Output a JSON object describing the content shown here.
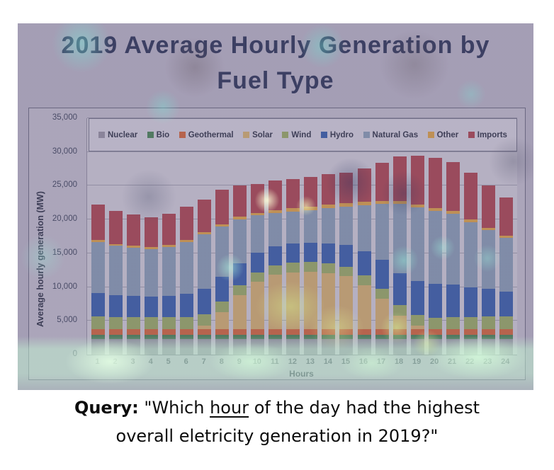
{
  "figure": {
    "title_line1": "2019 Average Hourly Generation by",
    "title_line2": "Fuel Type"
  },
  "query": {
    "label": "Query:",
    "before": " \"Which ",
    "underlined": "hour",
    "after": " of the day had the highest overall eletricity generation in 2019?\""
  },
  "chart_data": {
    "type": "bar",
    "stacked": true,
    "title": "2019 Average Hourly Generation by Fuel Type",
    "xlabel": "Hours",
    "ylabel": "Average hourly generation (MW)",
    "ylim": [
      0,
      35000
    ],
    "ytick_step": 5000,
    "ytick_labels": [
      "0",
      "5,000",
      "10,000",
      "15,000",
      "20,000",
      "25,000",
      "30,000",
      "35,000"
    ],
    "grid": true,
    "legend_position": "top",
    "categories": [
      "1",
      "2",
      "3",
      "4",
      "5",
      "6",
      "7",
      "8",
      "9",
      "10",
      "11",
      "12",
      "13",
      "14",
      "15",
      "16",
      "17",
      "18",
      "19",
      "20",
      "21",
      "22",
      "23",
      "24"
    ],
    "series": [
      {
        "name": "Nuclear",
        "color": "#8f8c9b",
        "values": [
          2300,
          2300,
          2300,
          2300,
          2300,
          2300,
          2300,
          2300,
          2300,
          2300,
          2300,
          2300,
          2300,
          2300,
          2300,
          2300,
          2300,
          2300,
          2300,
          2300,
          2300,
          2300,
          2300,
          2300
        ]
      },
      {
        "name": "Bio",
        "color": "#3f7d4b",
        "values": [
          600,
          600,
          600,
          600,
          600,
          600,
          600,
          600,
          600,
          600,
          600,
          600,
          600,
          600,
          600,
          600,
          600,
          600,
          600,
          600,
          600,
          600,
          600,
          600
        ]
      },
      {
        "name": "Geothermal",
        "color": "#cf5d2e",
        "values": [
          900,
          900,
          900,
          900,
          900,
          900,
          900,
          900,
          900,
          900,
          900,
          900,
          900,
          900,
          900,
          900,
          900,
          900,
          900,
          900,
          900,
          900,
          900,
          900
        ]
      },
      {
        "name": "Solar",
        "color": "#d2ab66",
        "values": [
          0,
          0,
          0,
          0,
          0,
          0,
          500,
          2500,
          5000,
          7000,
          8000,
          8400,
          8500,
          8300,
          7800,
          6500,
          4500,
          2000,
          500,
          0,
          0,
          0,
          0,
          0
        ]
      },
      {
        "name": "Wind",
        "color": "#93a65a",
        "values": [
          1900,
          1800,
          1800,
          1800,
          1800,
          1800,
          1700,
          1600,
          1500,
          1400,
          1400,
          1400,
          1400,
          1400,
          1400,
          1400,
          1500,
          1500,
          1600,
          1700,
          1800,
          1800,
          1900,
          1900
        ]
      },
      {
        "name": "Hydro",
        "color": "#2c55a5",
        "values": [
          3400,
          3200,
          3100,
          3000,
          3100,
          3400,
          3800,
          3600,
          3200,
          2900,
          2800,
          2900,
          2900,
          3000,
          3200,
          3600,
          4200,
          4800,
          5000,
          5000,
          4800,
          4400,
          4000,
          3600
        ]
      },
      {
        "name": "Natural Gas",
        "color": "#8196af",
        "values": [
          7600,
          7300,
          7100,
          7000,
          7200,
          7700,
          8000,
          7500,
          6500,
          5500,
          5000,
          4700,
          4800,
          5200,
          5700,
          6800,
          8300,
          10200,
          10900,
          10800,
          10500,
          9600,
          8800,
          8000
        ]
      },
      {
        "name": "Other",
        "color": "#db9d3a",
        "values": [
          300,
          300,
          300,
          300,
          300,
          300,
          300,
          300,
          400,
          400,
          400,
          500,
          500,
          500,
          500,
          500,
          400,
          400,
          400,
          400,
          400,
          400,
          300,
          300
        ]
      },
      {
        "name": "Imports",
        "color": "#a63a44",
        "values": [
          5200,
          4900,
          4700,
          4400,
          4700,
          4900,
          4900,
          5100,
          4700,
          4300,
          4400,
          4300,
          4400,
          4500,
          4500,
          5000,
          5700,
          6700,
          7300,
          7400,
          7200,
          6900,
          6300,
          5700
        ]
      }
    ]
  }
}
